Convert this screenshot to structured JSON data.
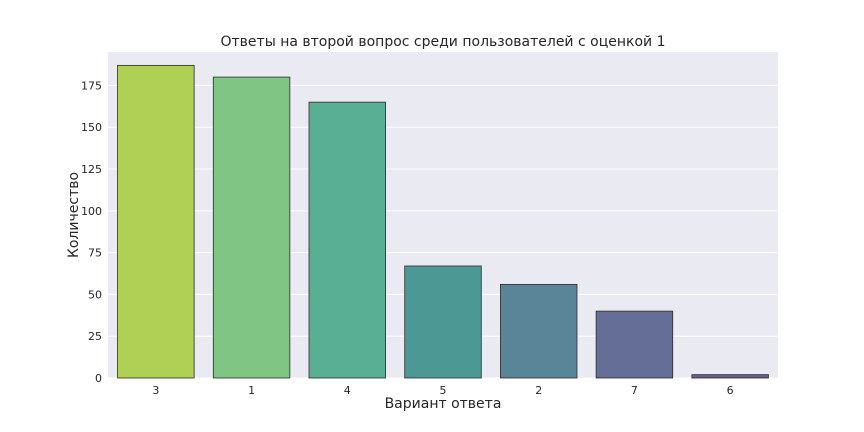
{
  "chart_data": {
    "type": "bar",
    "title": "Ответы на второй вопрос среди пользователей с оценкой 1",
    "xlabel": "Вариант ответа",
    "ylabel": "Количество",
    "categories": [
      "3",
      "1",
      "4",
      "5",
      "2",
      "7",
      "6"
    ],
    "values": [
      187,
      180,
      165,
      67,
      56,
      40,
      2
    ],
    "ylim": [
      0,
      195
    ],
    "yticks": [
      0,
      25,
      50,
      75,
      100,
      125,
      150,
      175
    ],
    "grid": true,
    "colors": [
      "#afd055",
      "#80c584",
      "#58af94",
      "#4b9895",
      "#5a8497",
      "#656e97",
      "#6b5b93"
    ],
    "background": "#eaeaf2"
  }
}
